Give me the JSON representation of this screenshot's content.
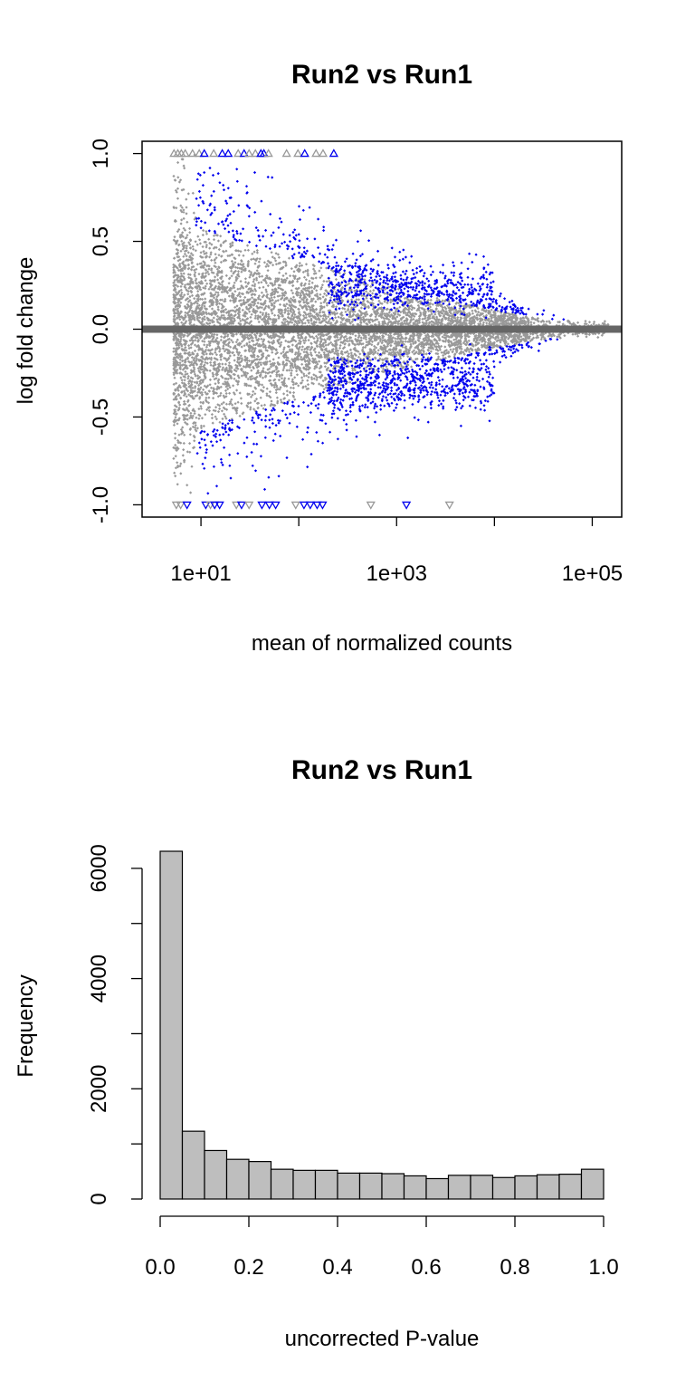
{
  "colors": {
    "background": "#ffffff",
    "nonsignificant": "#999999",
    "significant": "#0000ee",
    "zero_line": "#666666",
    "hist_fill": "#bebebe",
    "axis": "#000000"
  },
  "chart_data": [
    {
      "type": "scatter",
      "subtype": "MA-plot",
      "title": "Run2 vs Run1",
      "xlabel": "mean of normalized counts",
      "ylabel": "log fold change",
      "x_scale": "log10",
      "xlim": [
        2.5,
        200000
      ],
      "ylim": [
        -1.07,
        1.07
      ],
      "x_ticks": [
        10,
        100,
        1000,
        10000,
        100000
      ],
      "x_tick_labels": [
        "1e+01",
        "",
        "1e+03",
        "",
        "1e+05"
      ],
      "y_ticks": [
        -1.0,
        -0.5,
        0.0,
        0.5,
        1.0
      ],
      "y_tick_labels": [
        "-1.0",
        "-0.5",
        "0.0",
        "0.5",
        "1.0"
      ],
      "zero_line": 0,
      "grid": false,
      "legend": "none",
      "series": [],
      "clipped_points": {
        "top": [
          {
            "x": 5.3,
            "sig": false
          },
          {
            "x": 5.8,
            "sig": false
          },
          {
            "x": 6.3,
            "sig": false
          },
          {
            "x": 6.9,
            "sig": false
          },
          {
            "x": 8.2,
            "sig": false
          },
          {
            "x": 9.6,
            "sig": false
          },
          {
            "x": 10.8,
            "sig": true
          },
          {
            "x": 13.5,
            "sig": false
          },
          {
            "x": 16.5,
            "sig": true
          },
          {
            "x": 19,
            "sig": true
          },
          {
            "x": 24,
            "sig": false
          },
          {
            "x": 27.6,
            "sig": true
          },
          {
            "x": 31,
            "sig": false
          },
          {
            "x": 36,
            "sig": false
          },
          {
            "x": 41,
            "sig": true
          },
          {
            "x": 44,
            "sig": true
          },
          {
            "x": 49,
            "sig": false
          },
          {
            "x": 75,
            "sig": false
          },
          {
            "x": 98,
            "sig": false
          },
          {
            "x": 115,
            "sig": true
          },
          {
            "x": 150,
            "sig": false
          },
          {
            "x": 177,
            "sig": false
          },
          {
            "x": 228,
            "sig": true
          }
        ],
        "bottom": [
          {
            "x": 5.6,
            "sig": false
          },
          {
            "x": 6.2,
            "sig": false
          },
          {
            "x": 7.2,
            "sig": true
          },
          {
            "x": 11.2,
            "sig": true
          },
          {
            "x": 12.5,
            "sig": false
          },
          {
            "x": 13.8,
            "sig": true
          },
          {
            "x": 15.5,
            "sig": true
          },
          {
            "x": 23,
            "sig": false
          },
          {
            "x": 26,
            "sig": true
          },
          {
            "x": 31,
            "sig": false
          },
          {
            "x": 42,
            "sig": true
          },
          {
            "x": 50,
            "sig": true
          },
          {
            "x": 58,
            "sig": true
          },
          {
            "x": 93,
            "sig": false
          },
          {
            "x": 113,
            "sig": true
          },
          {
            "x": 131,
            "sig": true
          },
          {
            "x": 154,
            "sig": true
          },
          {
            "x": 175,
            "sig": true
          },
          {
            "x": 545,
            "sig": false
          },
          {
            "x": 1260,
            "sig": true
          },
          {
            "x": 3470,
            "sig": false
          }
        ]
      }
    },
    {
      "type": "bar",
      "subtype": "histogram",
      "title": "Run2 vs Run1",
      "xlabel": "uncorrected P-value",
      "ylabel": "Frequency",
      "bin_width": 0.05,
      "bin_starts": [
        0.0,
        0.05,
        0.1,
        0.15,
        0.2,
        0.25,
        0.3,
        0.35,
        0.4,
        0.45,
        0.5,
        0.55,
        0.6,
        0.65,
        0.7,
        0.75,
        0.8,
        0.85,
        0.9,
        0.95
      ],
      "values": [
        6310,
        1230,
        880,
        720,
        680,
        540,
        520,
        520,
        470,
        470,
        460,
        420,
        370,
        430,
        430,
        390,
        420,
        440,
        450,
        540
      ],
      "xlim": [
        0,
        1
      ],
      "ylim": [
        0,
        6310
      ],
      "x_ticks": [
        0.0,
        0.2,
        0.4,
        0.6,
        0.8,
        1.0
      ],
      "x_tick_labels": [
        "0.0",
        "0.2",
        "0.4",
        "0.6",
        "0.8",
        "1.0"
      ],
      "y_ticks": [
        0,
        2000,
        4000,
        6000
      ],
      "y_tick_labels": [
        "0",
        "2000",
        "4000",
        "6000"
      ],
      "grid": false,
      "legend": "none"
    }
  ]
}
